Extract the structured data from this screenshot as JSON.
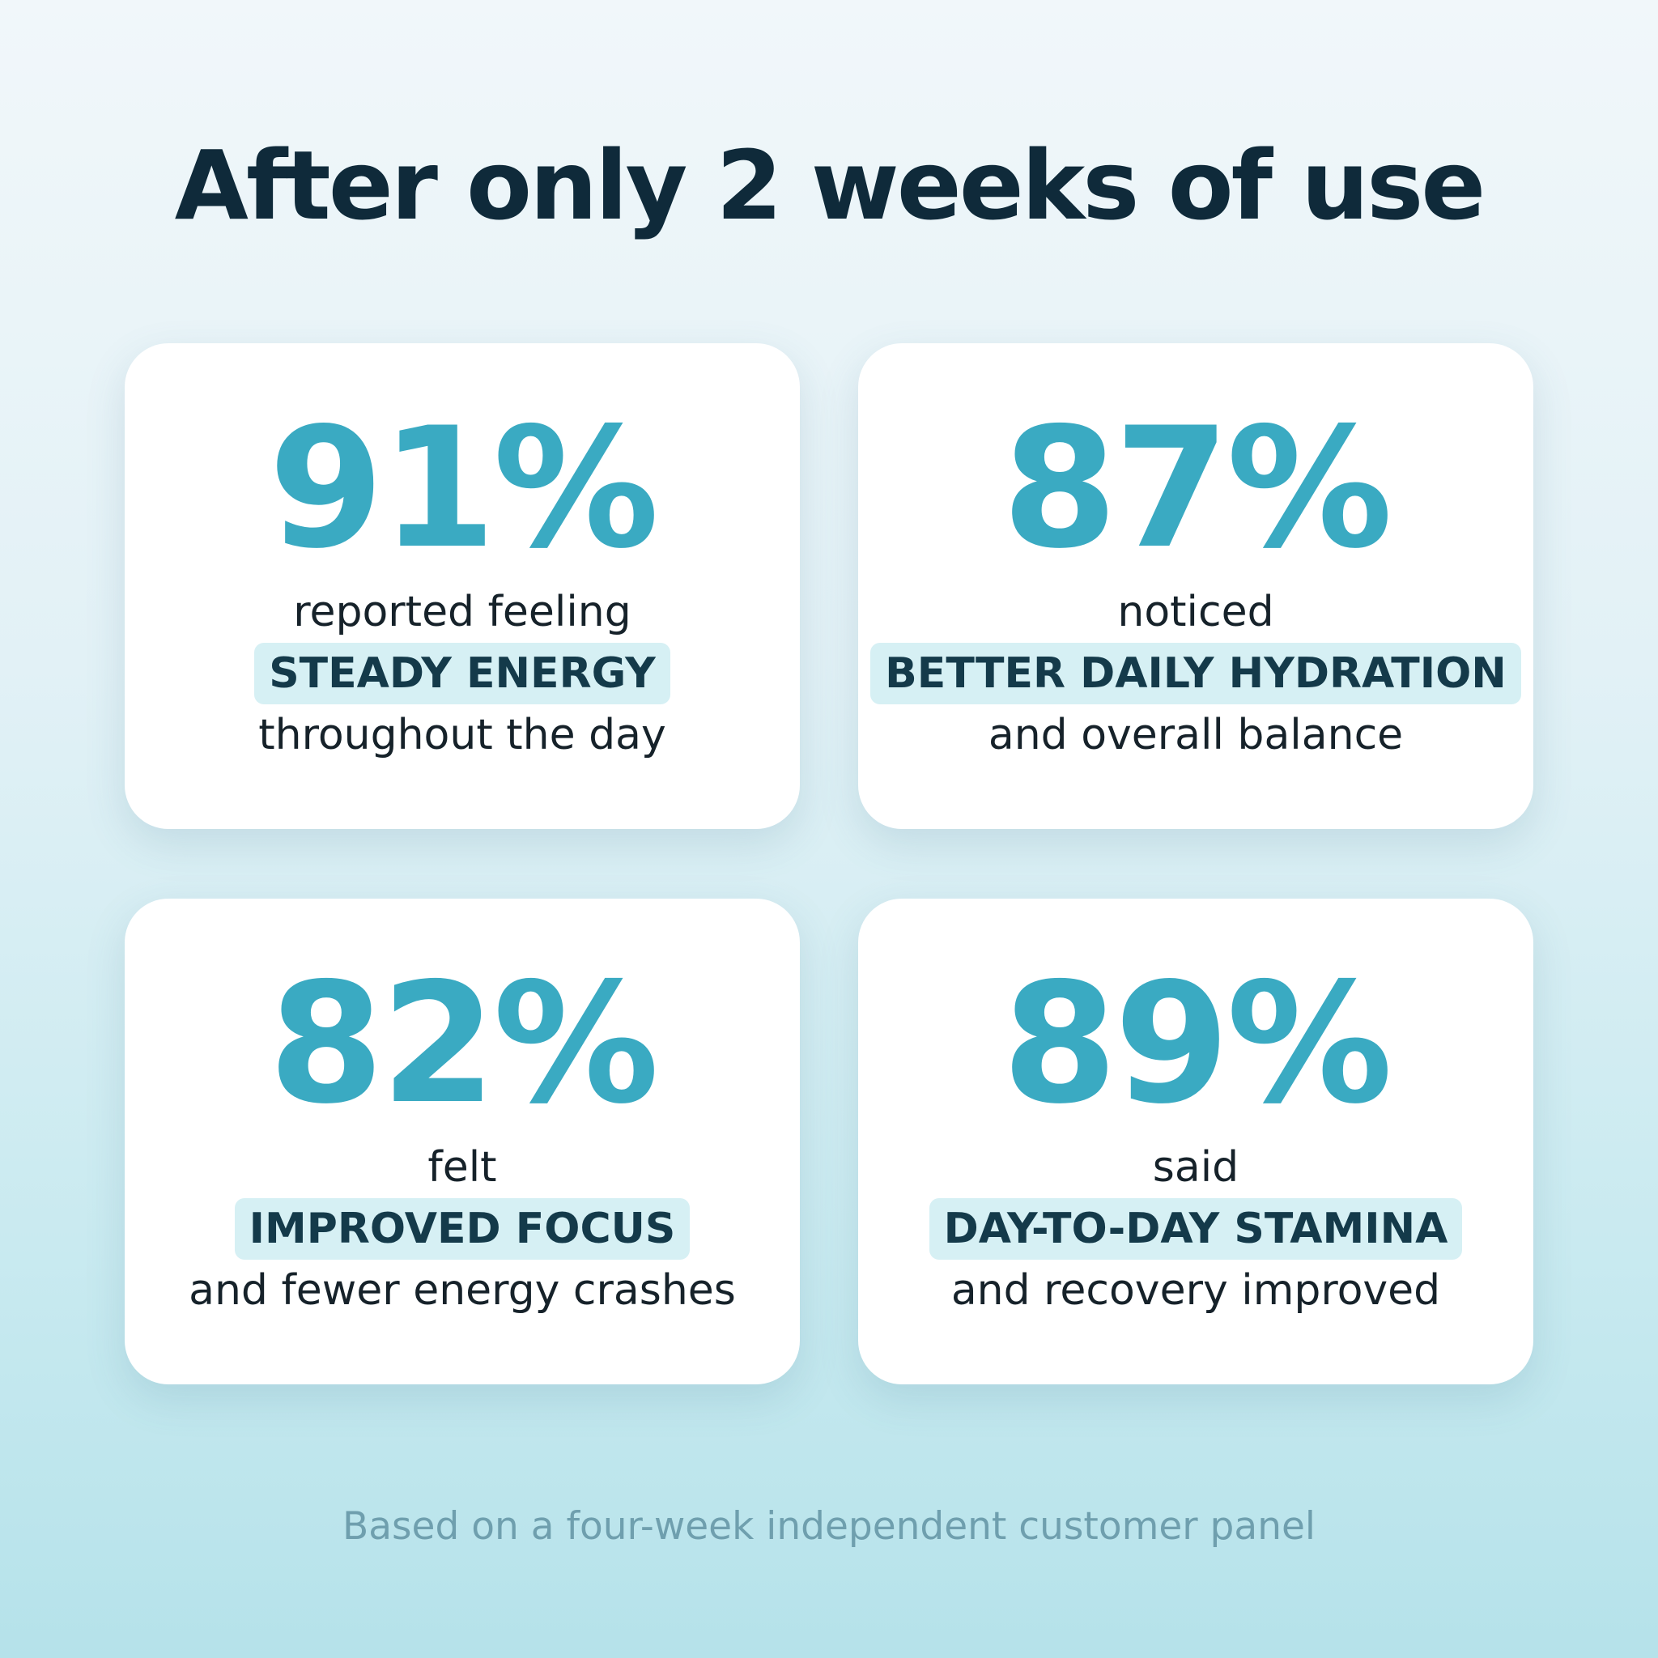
{
  "title": "After only 2 weeks of use",
  "cards": [
    {
      "stat": "91%",
      "line1": "reported feeling",
      "highlight": "STEADY ENERGY",
      "line2": "throughout the day"
    },
    {
      "stat": "87%",
      "line1": "noticed",
      "highlight": "BETTER DAILY HYDRATION",
      "line2": "and overall balance"
    },
    {
      "stat": "82%",
      "line1": "felt",
      "highlight": "IMPROVED FOCUS",
      "line2": "and fewer energy crashes"
    },
    {
      "stat": "89%",
      "line1": "said",
      "highlight": "DAY-TO-DAY STAMINA",
      "line2": "and recovery improved"
    }
  ],
  "footnote": "Based on a four-week independent customer panel"
}
